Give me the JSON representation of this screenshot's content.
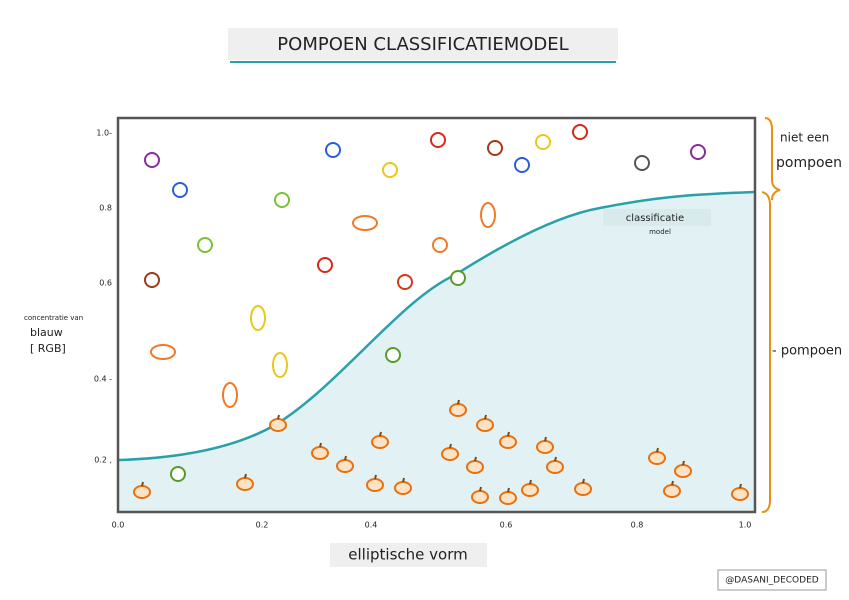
{
  "title": "POMPOEN CLASSIFICATIEMODEL",
  "y_axis": {
    "label_lines": [
      "concentratie van",
      "blauw",
      "[ RGB]"
    ],
    "ticks": [
      "1.0-",
      "0.8",
      "0.6",
      "0.4 -",
      "0.2 ,"
    ]
  },
  "x_axis": {
    "label": "elliptische vorm",
    "ticks": [
      "0.0",
      "0.2",
      "0.4",
      "0.6",
      "0.8",
      "1.0"
    ]
  },
  "curve_label": [
    "classificatie",
    "model"
  ],
  "classes": {
    "not_pumpkin": [
      "niet een",
      "pompoen"
    ],
    "pumpkin": "- pompoen"
  },
  "credit": "@DASANI_DECODED"
}
